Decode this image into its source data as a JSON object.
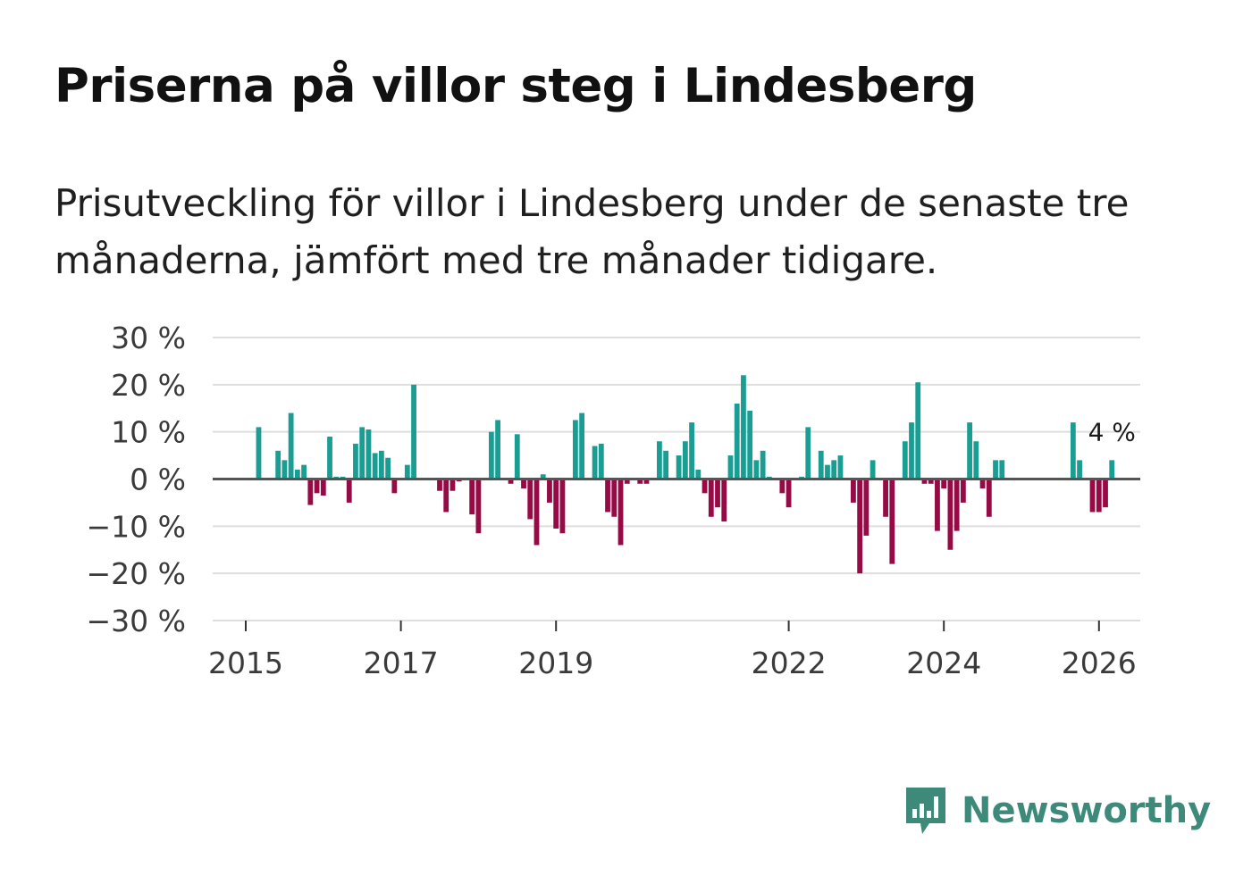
{
  "title": "Priserna på villor steg i Lindesberg",
  "subtitle": "Prisutveckling för villor i Lindesberg under de senaste tre månaderna, jämfört med tre månader tidigare.",
  "brand": {
    "name": "Newsworthy",
    "logo_icon": "chart-speech-bubble-icon"
  },
  "colors": {
    "positive": "#1a9e93",
    "negative": "#960a45",
    "grid": "#dedede",
    "zero": "#555555",
    "brand": "#3e8a7a"
  },
  "chart_data": {
    "type": "bar",
    "title": "Priserna på villor steg i Lindesberg",
    "xlabel": "",
    "ylabel": "",
    "ylim": [
      -30,
      30
    ],
    "yticks": [
      30,
      20,
      10,
      0,
      -10,
      -20,
      -30
    ],
    "ytick_labels": [
      "30 %",
      "20 %",
      "10 %",
      "0 %",
      "−10 %",
      "−20 %",
      "−30 %"
    ],
    "xticks": [
      2015,
      2017,
      2019,
      2022,
      2024,
      2026
    ],
    "xtick_labels": [
      "2015",
      "2017",
      "2019",
      "2022",
      "2024",
      "2026"
    ],
    "x_start": 2015.0,
    "month_step": 0.08333,
    "last_value_label": "4 %",
    "values": [
      null,
      null,
      11,
      null,
      null,
      6,
      4,
      14,
      2,
      3,
      -5.5,
      -3,
      -3.5,
      9,
      0.5,
      0.5,
      -5,
      7.5,
      11,
      10.5,
      5.5,
      6,
      4.5,
      -3,
      null,
      3,
      20,
      null,
      null,
      null,
      -2.5,
      -7,
      -2.5,
      -0.5,
      null,
      -7.5,
      -11.5,
      null,
      10,
      12.5,
      null,
      -1,
      9.5,
      -2,
      -8.5,
      -14,
      1,
      -5,
      -10.5,
      -11.5,
      null,
      12.5,
      14,
      null,
      7,
      7.5,
      -7,
      -8,
      -14,
      -1,
      null,
      -1,
      -1,
      null,
      8,
      6,
      null,
      5,
      8,
      12,
      2,
      -3,
      -8,
      -6,
      -9,
      5,
      16,
      22,
      14.5,
      4,
      6,
      0.5,
      null,
      -3,
      -6,
      null,
      0.5,
      11,
      null,
      6,
      3,
      4,
      5,
      null,
      -5,
      -20,
      -12,
      4,
      null,
      -8,
      -18,
      null,
      8,
      12,
      20.5,
      -1,
      -1,
      -11,
      -2,
      -15,
      -11,
      -5,
      12,
      8,
      -2,
      -8,
      4,
      4,
      null,
      null,
      null,
      null,
      null,
      null,
      null,
      null,
      null,
      null,
      12,
      4,
      null,
      -7,
      -7,
      -6,
      4
    ]
  }
}
